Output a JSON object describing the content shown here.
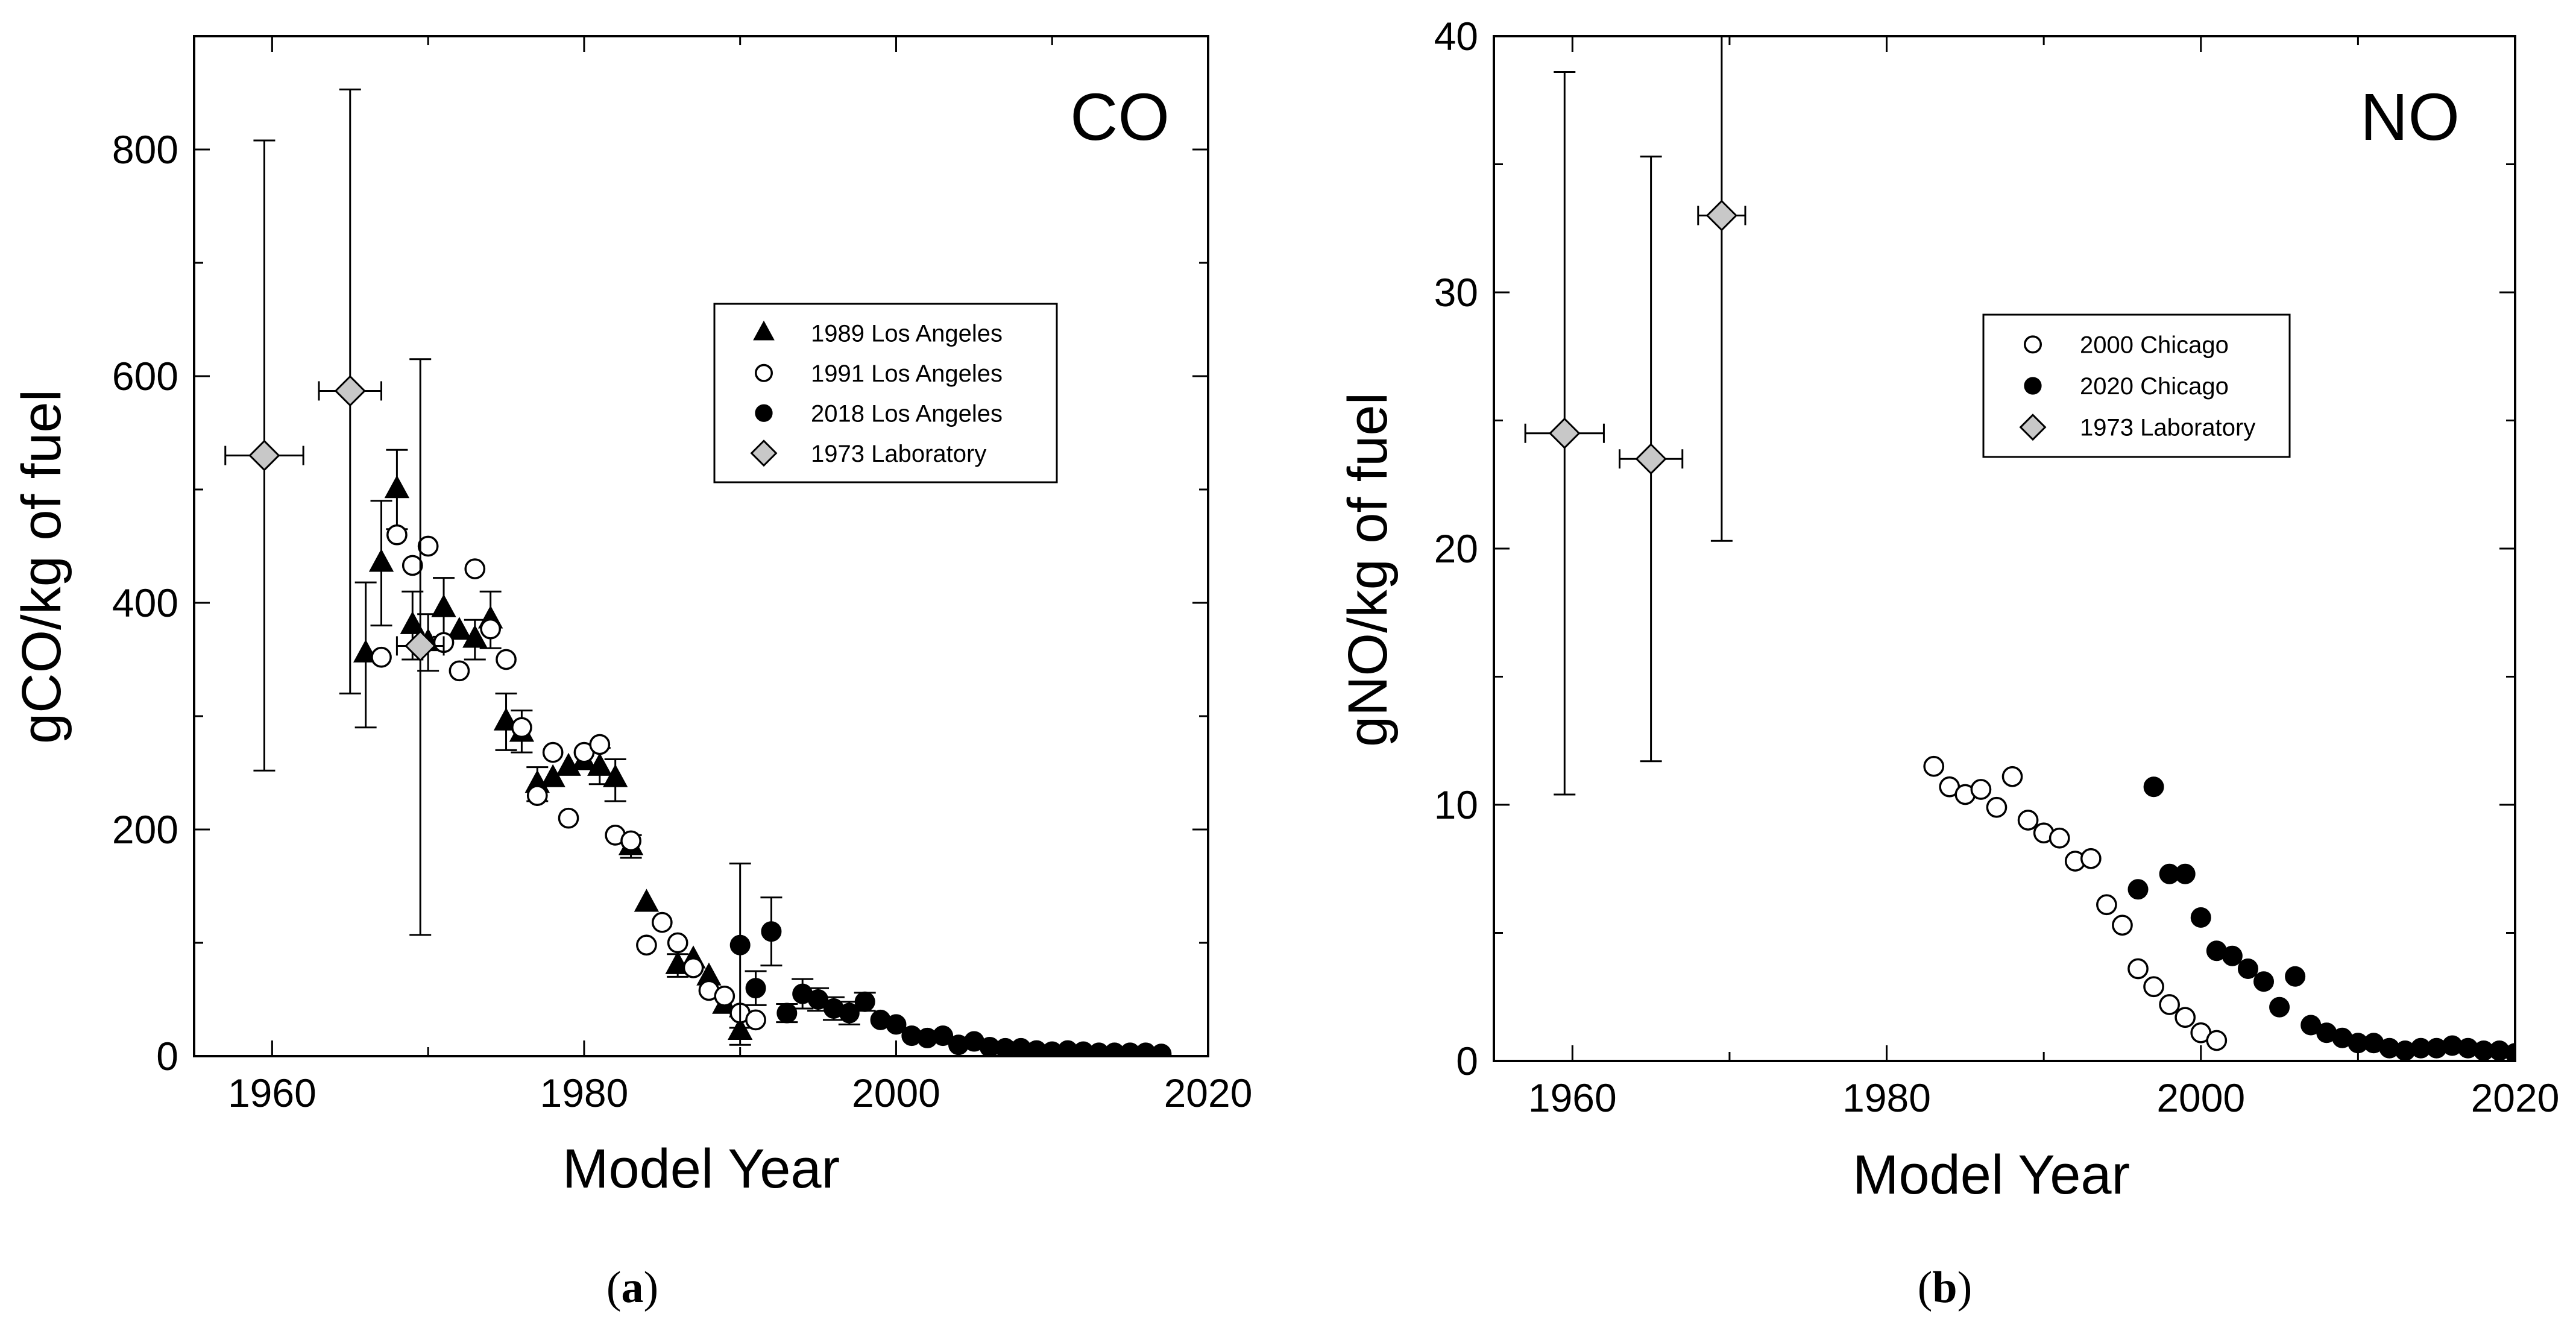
{
  "chart_data": [
    {
      "type": "scatter",
      "title": "CO",
      "caption_open": "(",
      "caption_letter": "a",
      "caption_close": ")",
      "xlabel": "Model Year",
      "ylabel": "gCO/kg of fuel",
      "xlim": [
        1955,
        2020
      ],
      "ylim": [
        0,
        900
      ],
      "xticks": [
        1960,
        1980,
        2000,
        2020
      ],
      "xtick_labels": [
        "1960",
        "1980",
        "2000",
        "2020"
      ],
      "yticks": [
        0,
        200,
        400,
        600,
        800
      ],
      "ytick_labels": [
        "0",
        "200",
        "400",
        "600",
        "800"
      ],
      "legend_position": "upper-right",
      "series": [
        {
          "name": "1989 Los Angeles",
          "marker": "triangle-filled",
          "points": [
            {
              "x": 1966,
              "y": 355,
              "yerr": [
                290,
                418
              ]
            },
            {
              "x": 1967,
              "y": 435,
              "yerr": [
                380,
                490
              ]
            },
            {
              "x": 1968,
              "y": 500,
              "yerr": [
                465,
                535
              ]
            },
            {
              "x": 1969,
              "y": 380,
              "yerr": [
                350,
                410
              ]
            },
            {
              "x": 1970,
              "y": 365,
              "yerr": [
                340,
                390
              ]
            },
            {
              "x": 1971,
              "y": 395,
              "yerr": [
                370,
                422
              ]
            },
            {
              "x": 1972,
              "y": 375
            },
            {
              "x": 1973,
              "y": 368,
              "yerr": [
                350,
                385
              ]
            },
            {
              "x": 1974,
              "y": 385,
              "yerr": [
                360,
                410
              ]
            },
            {
              "x": 1975,
              "y": 295,
              "yerr": [
                270,
                320
              ]
            },
            {
              "x": 1976,
              "y": 285,
              "yerr": [
                268,
                305
              ]
            },
            {
              "x": 1977,
              "y": 240,
              "yerr": [
                225,
                255
              ]
            },
            {
              "x": 1978,
              "y": 245
            },
            {
              "x": 1979,
              "y": 255
            },
            {
              "x": 1980,
              "y": 260
            },
            {
              "x": 1981,
              "y": 255,
              "yerr": [
                240,
                272
              ]
            },
            {
              "x": 1982,
              "y": 245,
              "yerr": [
                225,
                262
              ]
            },
            {
              "x": 1983,
              "y": 185,
              "yerr": [
                175,
                195
              ]
            },
            {
              "x": 1984,
              "y": 135
            },
            {
              "x": 1986,
              "y": 80,
              "yerr": [
                70,
                90
              ]
            },
            {
              "x": 1987,
              "y": 85
            },
            {
              "x": 1988,
              "y": 70
            },
            {
              "x": 1989,
              "y": 45
            },
            {
              "x": 1990,
              "y": 22,
              "yerr": [
                10,
                35
              ]
            }
          ]
        },
        {
          "name": "1991 Los Angeles",
          "marker": "circle-open",
          "points": [
            {
              "x": 1967,
              "y": 352
            },
            {
              "x": 1968,
              "y": 460
            },
            {
              "x": 1969,
              "y": 433
            },
            {
              "x": 1970,
              "y": 450
            },
            {
              "x": 1971,
              "y": 365
            },
            {
              "x": 1972,
              "y": 340
            },
            {
              "x": 1973,
              "y": 430
            },
            {
              "x": 1974,
              "y": 377
            },
            {
              "x": 1975,
              "y": 350
            },
            {
              "x": 1976,
              "y": 290
            },
            {
              "x": 1977,
              "y": 230
            },
            {
              "x": 1978,
              "y": 268
            },
            {
              "x": 1979,
              "y": 210
            },
            {
              "x": 1980,
              "y": 268
            },
            {
              "x": 1981,
              "y": 275
            },
            {
              "x": 1982,
              "y": 195
            },
            {
              "x": 1983,
              "y": 190
            },
            {
              "x": 1984,
              "y": 98
            },
            {
              "x": 1985,
              "y": 118
            },
            {
              "x": 1986,
              "y": 100
            },
            {
              "x": 1987,
              "y": 78
            },
            {
              "x": 1988,
              "y": 58
            },
            {
              "x": 1989,
              "y": 53
            },
            {
              "x": 1990,
              "y": 38
            },
            {
              "x": 1991,
              "y": 32
            }
          ]
        },
        {
          "name": "2018 Los Angeles",
          "marker": "circle-filled",
          "points": [
            {
              "x": 1990,
              "y": 98,
              "yerr": [
                25,
                170
              ]
            },
            {
              "x": 1991,
              "y": 60,
              "yerr": [
                45,
                75
              ]
            },
            {
              "x": 1992,
              "y": 110,
              "yerr": [
                80,
                140
              ]
            },
            {
              "x": 1993,
              "y": 38,
              "yerr": [
                30,
                46
              ]
            },
            {
              "x": 1994,
              "y": 55,
              "yerr": [
                42,
                68
              ]
            },
            {
              "x": 1995,
              "y": 50,
              "yerr": [
                40,
                60
              ]
            },
            {
              "x": 1996,
              "y": 42,
              "yerr": [
                32,
                52
              ]
            },
            {
              "x": 1997,
              "y": 38,
              "yerr": [
                28,
                48
              ]
            },
            {
              "x": 1998,
              "y": 48,
              "yerr": [
                40,
                56
              ]
            },
            {
              "x": 1999,
              "y": 32
            },
            {
              "x": 2000,
              "y": 28
            },
            {
              "x": 2001,
              "y": 18
            },
            {
              "x": 2002,
              "y": 16
            },
            {
              "x": 2003,
              "y": 18
            },
            {
              "x": 2004,
              "y": 10
            },
            {
              "x": 2005,
              "y": 13
            },
            {
              "x": 2006,
              "y": 8
            },
            {
              "x": 2007,
              "y": 7
            },
            {
              "x": 2008,
              "y": 7
            },
            {
              "x": 2009,
              "y": 5
            },
            {
              "x": 2010,
              "y": 4
            },
            {
              "x": 2011,
              "y": 5
            },
            {
              "x": 2012,
              "y": 4
            },
            {
              "x": 2013,
              "y": 3
            },
            {
              "x": 2014,
              "y": 3
            },
            {
              "x": 2015,
              "y": 3
            },
            {
              "x": 2016,
              "y": 3
            },
            {
              "x": 2017,
              "y": 2
            }
          ]
        },
        {
          "name": "1973 Laboratory",
          "marker": "diamond-gray",
          "points": [
            {
              "x": 1959.5,
              "y": 530,
              "yerr": [
                252,
                808
              ],
              "xerr": [
                1957,
                1962
              ]
            },
            {
              "x": 1965,
              "y": 587,
              "yerr": [
                320,
                853
              ],
              "xerr": [
                1963,
                1967
              ]
            },
            {
              "x": 1969.5,
              "y": 362,
              "yerr": [
                107,
                615
              ],
              "xerr": [
                1968,
                1971
              ]
            }
          ]
        }
      ]
    },
    {
      "type": "scatter",
      "title": "NO",
      "caption_open": "(",
      "caption_letter": "b",
      "caption_close": ")",
      "xlabel": "Model Year",
      "ylabel": "gNO/kg of fuel",
      "xlim": [
        1955,
        2020
      ],
      "ylim": [
        0,
        40
      ],
      "xticks": [
        1960,
        1980,
        2000,
        2020
      ],
      "xtick_labels": [
        "1960",
        "1980",
        "2000",
        "2020"
      ],
      "yticks": [
        0,
        10,
        20,
        30,
        40
      ],
      "ytick_labels": [
        "0",
        "10",
        "20",
        "30",
        "40"
      ],
      "legend_position": "upper-right",
      "series": [
        {
          "name": "2000 Chicago",
          "marker": "circle-open",
          "points": [
            {
              "x": 1983,
              "y": 11.5
            },
            {
              "x": 1984,
              "y": 10.7
            },
            {
              "x": 1985,
              "y": 10.4
            },
            {
              "x": 1986,
              "y": 10.6
            },
            {
              "x": 1987,
              "y": 9.9
            },
            {
              "x": 1988,
              "y": 11.1
            },
            {
              "x": 1989,
              "y": 9.4
            },
            {
              "x": 1990,
              "y": 8.9
            },
            {
              "x": 1991,
              "y": 8.7
            },
            {
              "x": 1992,
              "y": 7.8
            },
            {
              "x": 1993,
              "y": 7.9
            },
            {
              "x": 1994,
              "y": 6.1
            },
            {
              "x": 1995,
              "y": 5.3
            },
            {
              "x": 1996,
              "y": 3.6
            },
            {
              "x": 1997,
              "y": 2.9
            },
            {
              "x": 1998,
              "y": 2.2
            },
            {
              "x": 1999,
              "y": 1.7
            },
            {
              "x": 2000,
              "y": 1.1
            },
            {
              "x": 2001,
              "y": 0.8
            }
          ]
        },
        {
          "name": "2020 Chicago",
          "marker": "circle-filled",
          "points": [
            {
              "x": 1996,
              "y": 6.7
            },
            {
              "x": 1997,
              "y": 10.7
            },
            {
              "x": 1998,
              "y": 7.3
            },
            {
              "x": 1999,
              "y": 7.3
            },
            {
              "x": 2000,
              "y": 5.6
            },
            {
              "x": 2001,
              "y": 4.3
            },
            {
              "x": 2002,
              "y": 4.1
            },
            {
              "x": 2003,
              "y": 3.6
            },
            {
              "x": 2004,
              "y": 3.1
            },
            {
              "x": 2005,
              "y": 2.1
            },
            {
              "x": 2006,
              "y": 3.3
            },
            {
              "x": 2007,
              "y": 1.4
            },
            {
              "x": 2008,
              "y": 1.1
            },
            {
              "x": 2009,
              "y": 0.9
            },
            {
              "x": 2010,
              "y": 0.7
            },
            {
              "x": 2011,
              "y": 0.7
            },
            {
              "x": 2012,
              "y": 0.5
            },
            {
              "x": 2013,
              "y": 0.4
            },
            {
              "x": 2014,
              "y": 0.5
            },
            {
              "x": 2015,
              "y": 0.5
            },
            {
              "x": 2016,
              "y": 0.6
            },
            {
              "x": 2017,
              "y": 0.5
            },
            {
              "x": 2018,
              "y": 0.4
            },
            {
              "x": 2019,
              "y": 0.4
            },
            {
              "x": 2020,
              "y": 0.3
            }
          ]
        },
        {
          "name": "1973 Laboratory",
          "marker": "diamond-gray",
          "points": [
            {
              "x": 1959.5,
              "y": 24.5,
              "yerr": [
                10.4,
                38.6
              ],
              "xerr": [
                1957,
                1962
              ]
            },
            {
              "x": 1965,
              "y": 23.5,
              "yerr": [
                11.7,
                35.3
              ],
              "xerr": [
                1963,
                1967
              ]
            },
            {
              "x": 1969.5,
              "y": 33,
              "yerr": [
                20.3,
                40
              ],
              "xerr": [
                1968,
                1971
              ]
            }
          ]
        }
      ]
    }
  ]
}
